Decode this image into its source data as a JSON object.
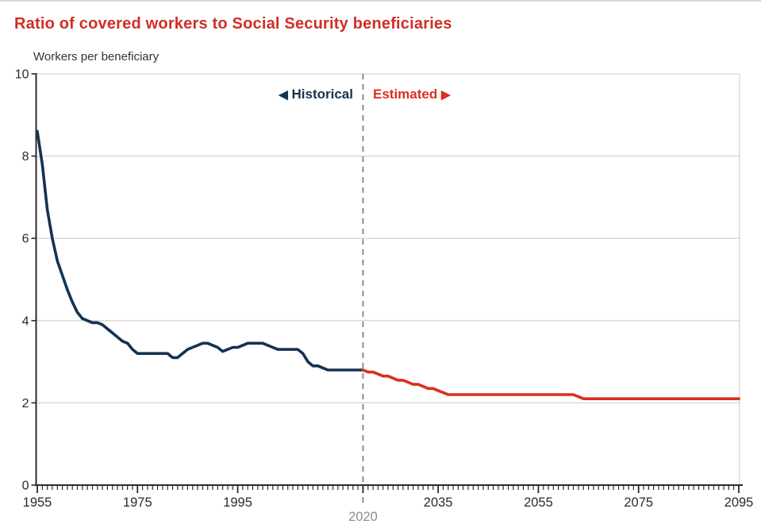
{
  "page": {
    "title": "Ratio of covered workers to Social Security beneficiaries",
    "y_axis_title": "Workers per beneficiary"
  },
  "legend": {
    "historical": {
      "icon": "◀",
      "label": "Historical"
    },
    "estimated": {
      "label": "Estimated",
      "icon": "▶"
    }
  },
  "colors": {
    "title": "#d02e26",
    "historical": "#143351",
    "estimated": "#da2f23",
    "axis": "#2b2b2b",
    "grid": "#d4d4d4",
    "divider": "#8c8c8c",
    "tick_label": "#2b2b2b",
    "boundary_label": "#8f8f8f"
  },
  "chart_data": {
    "type": "line",
    "title": "Ratio of covered workers to Social Security beneficiaries",
    "ylabel": "Workers per beneficiary",
    "xlabel": "",
    "x_range": [
      1955,
      2095
    ],
    "ylim": [
      0,
      10
    ],
    "y_ticks": [
      0,
      2,
      4,
      6,
      8,
      10
    ],
    "x_ticks": [
      1955,
      1975,
      1995,
      2035,
      2055,
      2075,
      2095
    ],
    "minor_x_tick_interval": 1,
    "grid": "horizontal",
    "legend_position": "top-center",
    "forecast_divider": {
      "year": 2020,
      "label": "2020",
      "style": "dashed"
    },
    "series": [
      {
        "name": "Historical",
        "color": "#143351",
        "start_year": 1955,
        "values": [
          8.6,
          7.8,
          6.7,
          6.0,
          5.45,
          5.1,
          4.75,
          4.45,
          4.2,
          4.05,
          4.0,
          3.95,
          3.95,
          3.9,
          3.8,
          3.7,
          3.6,
          3.5,
          3.45,
          3.3,
          3.2,
          3.2,
          3.2,
          3.2,
          3.2,
          3.2,
          3.2,
          3.1,
          3.1,
          3.2,
          3.3,
          3.35,
          3.4,
          3.45,
          3.45,
          3.4,
          3.35,
          3.25,
          3.3,
          3.35,
          3.35,
          3.4,
          3.45,
          3.45,
          3.45,
          3.45,
          3.4,
          3.35,
          3.3,
          3.3,
          3.3,
          3.3,
          3.3,
          3.2,
          3.0,
          2.9,
          2.9,
          2.85,
          2.8,
          2.8,
          2.8,
          2.8,
          2.8,
          2.8,
          2.8,
          2.8
        ]
      },
      {
        "name": "Estimated",
        "color": "#da2f23",
        "start_year": 2020,
        "values": [
          2.8,
          2.75,
          2.75,
          2.7,
          2.65,
          2.65,
          2.6,
          2.55,
          2.55,
          2.5,
          2.45,
          2.45,
          2.4,
          2.35,
          2.35,
          2.3,
          2.25,
          2.2,
          2.2,
          2.2,
          2.2,
          2.2,
          2.2,
          2.2,
          2.2,
          2.2,
          2.2,
          2.2,
          2.2,
          2.2,
          2.2,
          2.2,
          2.2,
          2.2,
          2.2,
          2.2,
          2.2,
          2.2,
          2.2,
          2.2,
          2.2,
          2.2,
          2.2,
          2.15,
          2.1,
          2.1,
          2.1,
          2.1,
          2.1,
          2.1,
          2.1,
          2.1,
          2.1,
          2.1,
          2.1,
          2.1,
          2.1,
          2.1,
          2.1,
          2.1,
          2.1,
          2.1,
          2.1,
          2.1,
          2.1,
          2.1,
          2.1,
          2.1,
          2.1,
          2.1,
          2.1,
          2.1,
          2.1,
          2.1,
          2.1,
          2.1
        ]
      }
    ]
  }
}
